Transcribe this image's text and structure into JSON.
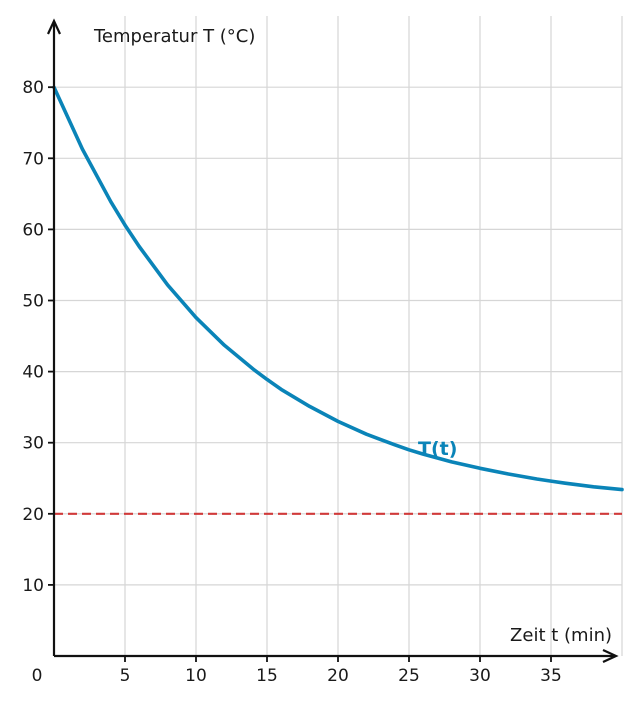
{
  "chart_data": {
    "type": "line",
    "xlabel": "Zeit t (min)",
    "ylabel": "Temperatur T (°C)",
    "xlim": [
      0,
      40
    ],
    "ylim": [
      0,
      80
    ],
    "x_ticks": [
      0,
      5,
      10,
      15,
      20,
      25,
      30,
      35
    ],
    "y_ticks": [
      10,
      20,
      30,
      40,
      50,
      60,
      70,
      80
    ],
    "grid": true,
    "series": [
      {
        "name": "T(t)",
        "color": "#0a84b8",
        "x": [
          0,
          2,
          4,
          5,
          6,
          8,
          10,
          12,
          14,
          15,
          16,
          18,
          20,
          22,
          24,
          25,
          26,
          28,
          30,
          32,
          34,
          35,
          36,
          38,
          40
        ],
        "y": [
          80.0,
          71.3,
          63.9,
          60.6,
          57.6,
          52.2,
          47.6,
          43.7,
          40.4,
          38.9,
          37.5,
          35.1,
          33.0,
          31.2,
          29.7,
          29.0,
          28.4,
          27.3,
          26.4,
          25.6,
          24.9,
          24.6,
          24.3,
          23.8,
          23.4
        ],
        "label": "T(t)"
      },
      {
        "name": "T = 20",
        "color": "#d03a3a",
        "style": "dashed",
        "x": [
          0,
          40
        ],
        "y": [
          20,
          20
        ]
      }
    ]
  }
}
